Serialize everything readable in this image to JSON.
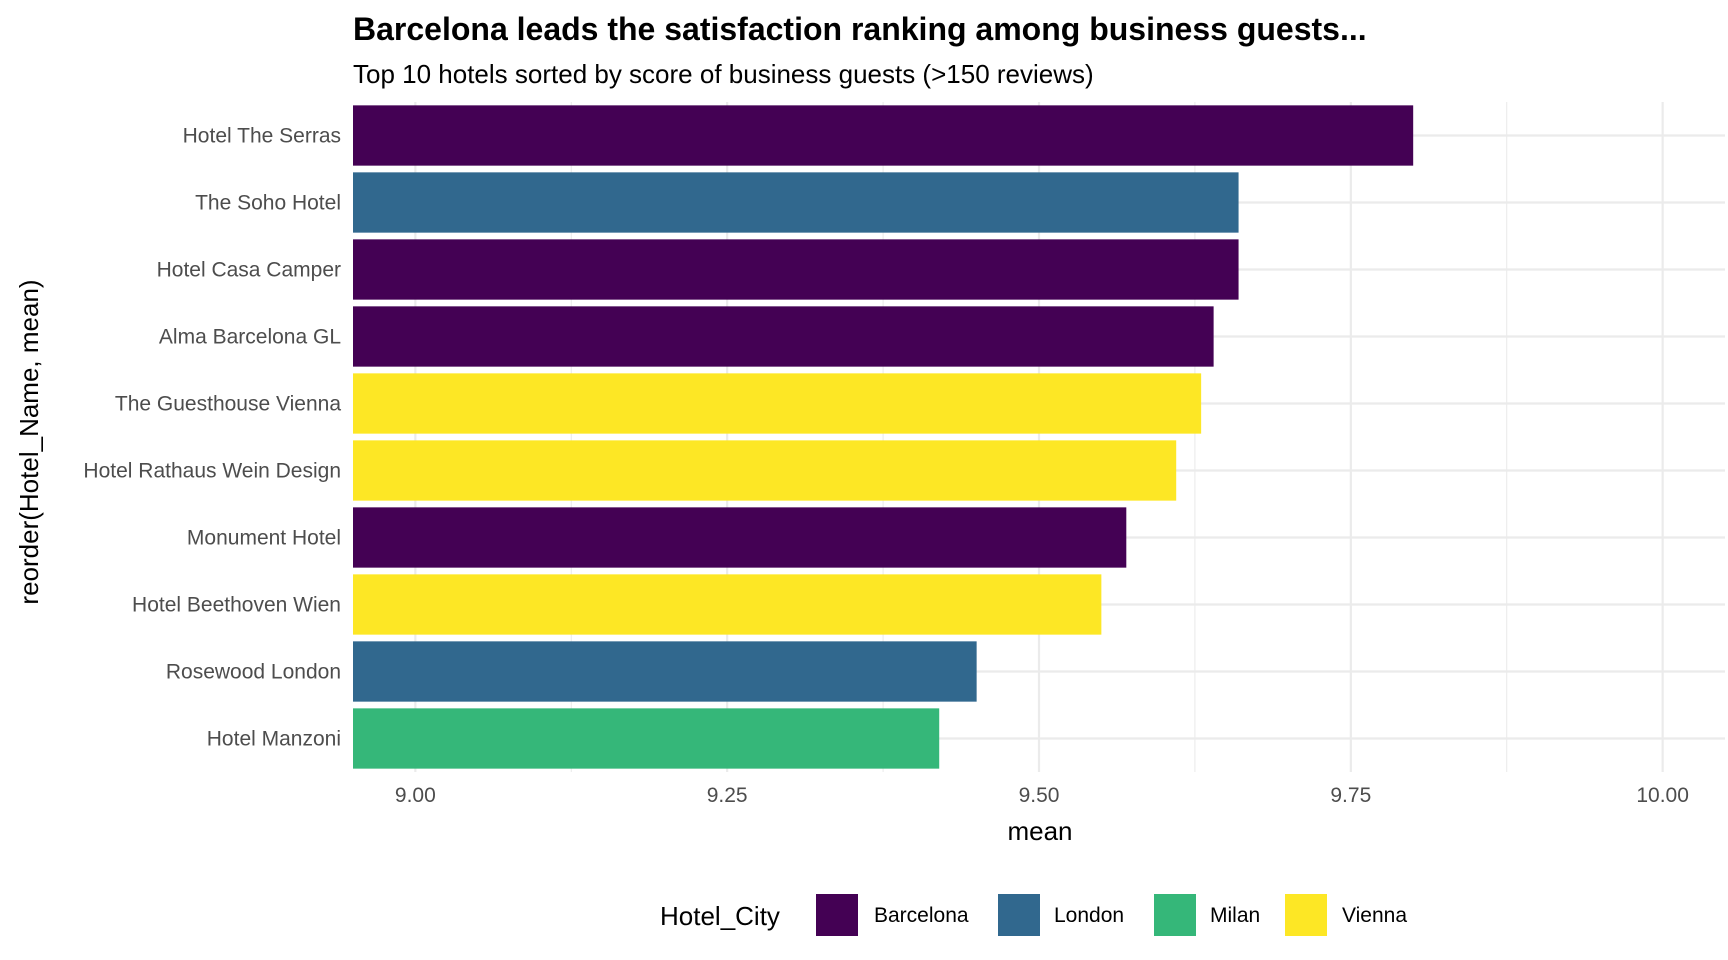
{
  "chart_data": {
    "type": "bar",
    "orientation": "horizontal",
    "title": "Barcelona leads the satisfaction ranking among business guests...",
    "subtitle": "Top 10 hotels sorted by score of business guests (>150 reviews)",
    "xlabel": "mean",
    "ylabel": "reorder(Hotel_Name, mean)",
    "xlim": [
      8.95,
      10.05
    ],
    "x_ticks": [
      9.0,
      9.25,
      9.5,
      9.75,
      10.0
    ],
    "x_tick_labels": [
      "9.00",
      "9.25",
      "9.50",
      "9.75",
      "10.00"
    ],
    "grid": true,
    "legend": {
      "title": "Hotel_City",
      "position": "bottom",
      "entries": [
        {
          "name": "Barcelona",
          "color": "#440154"
        },
        {
          "name": "London",
          "color": "#31688E"
        },
        {
          "name": "Milan",
          "color": "#35B779"
        },
        {
          "name": "Vienna",
          "color": "#FDE725"
        }
      ]
    },
    "categories": [
      "Hotel The Serras",
      "The Soho Hotel",
      "Hotel Casa Camper",
      "Alma Barcelona GL",
      "The Guesthouse Vienna",
      "Hotel Rathaus Wein Design",
      "Monument Hotel",
      "Hotel Beethoven Wien",
      "Rosewood London",
      "Hotel Manzoni"
    ],
    "values": [
      9.8,
      9.66,
      9.66,
      9.64,
      9.63,
      9.61,
      9.57,
      9.55,
      9.45,
      9.42
    ],
    "groups": [
      "Barcelona",
      "London",
      "Barcelona",
      "Barcelona",
      "Vienna",
      "Vienna",
      "Barcelona",
      "Vienna",
      "London",
      "Milan"
    ]
  }
}
